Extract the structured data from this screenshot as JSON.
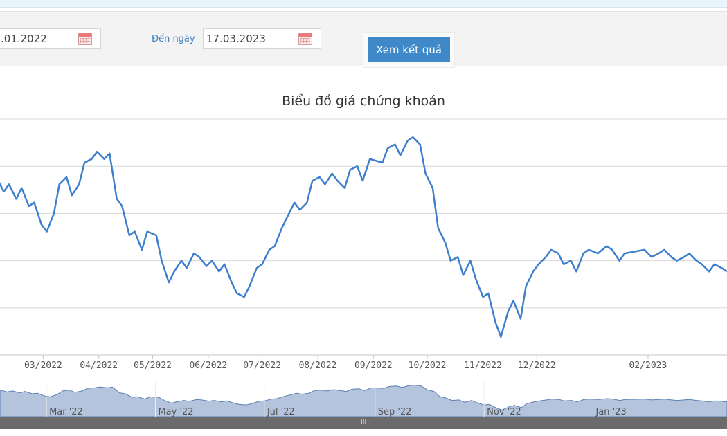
{
  "filter": {
    "from_date_value": ".01.2022",
    "to_label": "Đến ngày",
    "to_date_value": "17.03.2023",
    "submit_label": "Xem kết quả",
    "calendar_icon": "calendar-icon"
  },
  "colors": {
    "line": "#3d7fcc",
    "grid": "#d8d8d8",
    "navigator_fill": "#b3c4dc",
    "navigator_line": "#5b7fb5",
    "title": "#333333",
    "axis_text": "#555555"
  },
  "chart_data": {
    "type": "line",
    "title": "Biểu đồ giá chứng khoán",
    "xlabel": "",
    "ylabel": "",
    "grid": true,
    "y_tick_labels_visible": false,
    "x_range": [
      "2022-02-03",
      "2023-03-17"
    ],
    "x_ticks": [
      {
        "date": "2022-03-01",
        "label": "03/2022"
      },
      {
        "date": "2022-04-01",
        "label": "04/2022"
      },
      {
        "date": "2022-05-01",
        "label": "05/2022"
      },
      {
        "date": "2022-06-01",
        "label": "06/2022"
      },
      {
        "date": "2022-07-01",
        "label": "07/2022"
      },
      {
        "date": "2022-08-01",
        "label": "08/2022"
      },
      {
        "date": "2022-09-01",
        "label": "09/2022"
      },
      {
        "date": "2022-10-01",
        "label": "10/2022"
      },
      {
        "date": "2022-11-01",
        "label": "11/2022"
      },
      {
        "date": "2022-12-01",
        "label": "12/2022"
      },
      {
        "date": "2023-02-01",
        "label": "02/2023"
      }
    ],
    "series": [
      {
        "points": [
          [
            "2022-02-03",
            9.9
          ],
          [
            "2022-02-07",
            9.5
          ],
          [
            "2022-02-10",
            9.7
          ],
          [
            "2022-02-14",
            9.3
          ],
          [
            "2022-02-17",
            9.6
          ],
          [
            "2022-02-21",
            9.1
          ],
          [
            "2022-02-24",
            9.2
          ],
          [
            "2022-02-28",
            8.6
          ],
          [
            "2022-03-03",
            8.4
          ],
          [
            "2022-03-07",
            8.9
          ],
          [
            "2022-03-10",
            9.7
          ],
          [
            "2022-03-14",
            9.9
          ],
          [
            "2022-03-17",
            9.4
          ],
          [
            "2022-03-21",
            9.7
          ],
          [
            "2022-03-24",
            10.3
          ],
          [
            "2022-03-28",
            10.4
          ],
          [
            "2022-03-31",
            10.6
          ],
          [
            "2022-04-04",
            10.4
          ],
          [
            "2022-04-07",
            10.55
          ],
          [
            "2022-04-11",
            9.3
          ],
          [
            "2022-04-14",
            9.1
          ],
          [
            "2022-04-18",
            8.3
          ],
          [
            "2022-04-21",
            8.4
          ],
          [
            "2022-04-25",
            7.9
          ],
          [
            "2022-04-28",
            8.4
          ],
          [
            "2022-05-03",
            8.3
          ],
          [
            "2022-05-06",
            7.6
          ],
          [
            "2022-05-10",
            7.0
          ],
          [
            "2022-05-13",
            7.3
          ],
          [
            "2022-05-17",
            7.6
          ],
          [
            "2022-05-20",
            7.4
          ],
          [
            "2022-05-24",
            7.8
          ],
          [
            "2022-05-27",
            7.7
          ],
          [
            "2022-05-31",
            7.45
          ],
          [
            "2022-06-03",
            7.6
          ],
          [
            "2022-06-07",
            7.3
          ],
          [
            "2022-06-10",
            7.5
          ],
          [
            "2022-06-14",
            7.0
          ],
          [
            "2022-06-17",
            6.7
          ],
          [
            "2022-06-21",
            6.6
          ],
          [
            "2022-06-24",
            6.9
          ],
          [
            "2022-06-28",
            7.4
          ],
          [
            "2022-07-01",
            7.5
          ],
          [
            "2022-07-05",
            7.9
          ],
          [
            "2022-07-08",
            8.0
          ],
          [
            "2022-07-12",
            8.5
          ],
          [
            "2022-07-15",
            8.8
          ],
          [
            "2022-07-19",
            9.2
          ],
          [
            "2022-07-22",
            9.0
          ],
          [
            "2022-07-26",
            9.2
          ],
          [
            "2022-07-29",
            9.8
          ],
          [
            "2022-08-02",
            9.9
          ],
          [
            "2022-08-05",
            9.7
          ],
          [
            "2022-08-09",
            10.0
          ],
          [
            "2022-08-12",
            9.8
          ],
          [
            "2022-08-16",
            9.6
          ],
          [
            "2022-08-19",
            10.1
          ],
          [
            "2022-08-23",
            10.2
          ],
          [
            "2022-08-26",
            9.8
          ],
          [
            "2022-08-30",
            10.4
          ],
          [
            "2022-09-06",
            10.3
          ],
          [
            "2022-09-09",
            10.7
          ],
          [
            "2022-09-13",
            10.8
          ],
          [
            "2022-09-16",
            10.5
          ],
          [
            "2022-09-20",
            10.9
          ],
          [
            "2022-09-23",
            11.0
          ],
          [
            "2022-09-27",
            10.8
          ],
          [
            "2022-09-30",
            10.0
          ],
          [
            "2022-10-04",
            9.6
          ],
          [
            "2022-10-07",
            8.5
          ],
          [
            "2022-10-11",
            8.1
          ],
          [
            "2022-10-14",
            7.6
          ],
          [
            "2022-10-18",
            7.7
          ],
          [
            "2022-10-21",
            7.2
          ],
          [
            "2022-10-25",
            7.6
          ],
          [
            "2022-10-28",
            7.1
          ],
          [
            "2022-11-01",
            6.6
          ],
          [
            "2022-11-04",
            6.7
          ],
          [
            "2022-11-08",
            5.9
          ],
          [
            "2022-11-11",
            5.5
          ],
          [
            "2022-11-15",
            6.2
          ],
          [
            "2022-11-18",
            6.5
          ],
          [
            "2022-11-22",
            6.0
          ],
          [
            "2022-11-25",
            6.9
          ],
          [
            "2022-11-29",
            7.3
          ],
          [
            "2022-12-02",
            7.5
          ],
          [
            "2022-12-06",
            7.7
          ],
          [
            "2022-12-09",
            7.9
          ],
          [
            "2022-12-13",
            7.8
          ],
          [
            "2022-12-16",
            7.5
          ],
          [
            "2022-12-20",
            7.6
          ],
          [
            "2022-12-23",
            7.3
          ],
          [
            "2022-12-27",
            7.8
          ],
          [
            "2022-12-30",
            7.9
          ],
          [
            "2023-01-04",
            7.8
          ],
          [
            "2023-01-09",
            8.0
          ],
          [
            "2023-01-12",
            7.9
          ],
          [
            "2023-01-16",
            7.6
          ],
          [
            "2023-01-19",
            7.8
          ],
          [
            "2023-01-30",
            7.9
          ],
          [
            "2023-02-03",
            7.7
          ],
          [
            "2023-02-07",
            7.8
          ],
          [
            "2023-02-10",
            7.9
          ],
          [
            "2023-02-14",
            7.7
          ],
          [
            "2023-02-17",
            7.6
          ],
          [
            "2023-02-21",
            7.7
          ],
          [
            "2023-02-24",
            7.8
          ],
          [
            "2023-02-28",
            7.6
          ],
          [
            "2023-03-03",
            7.5
          ],
          [
            "2023-03-07",
            7.3
          ],
          [
            "2023-03-10",
            7.5
          ],
          [
            "2023-03-14",
            7.4
          ],
          [
            "2023-03-17",
            7.3
          ]
        ]
      }
    ],
    "navigator": {
      "range": [
        "2022-02-03",
        "2023-03-17"
      ],
      "labels": [
        {
          "date": "2022-03-01",
          "label": "Mar '22"
        },
        {
          "date": "2022-05-01",
          "label": "May '22"
        },
        {
          "date": "2022-07-01",
          "label": "Jul '22"
        },
        {
          "date": "2022-09-01",
          "label": "Sep '22"
        },
        {
          "date": "2022-11-01",
          "label": "Nov '22"
        },
        {
          "date": "2023-01-01",
          "label": "Jan '23"
        }
      ]
    },
    "scrollbar_label": "III"
  }
}
